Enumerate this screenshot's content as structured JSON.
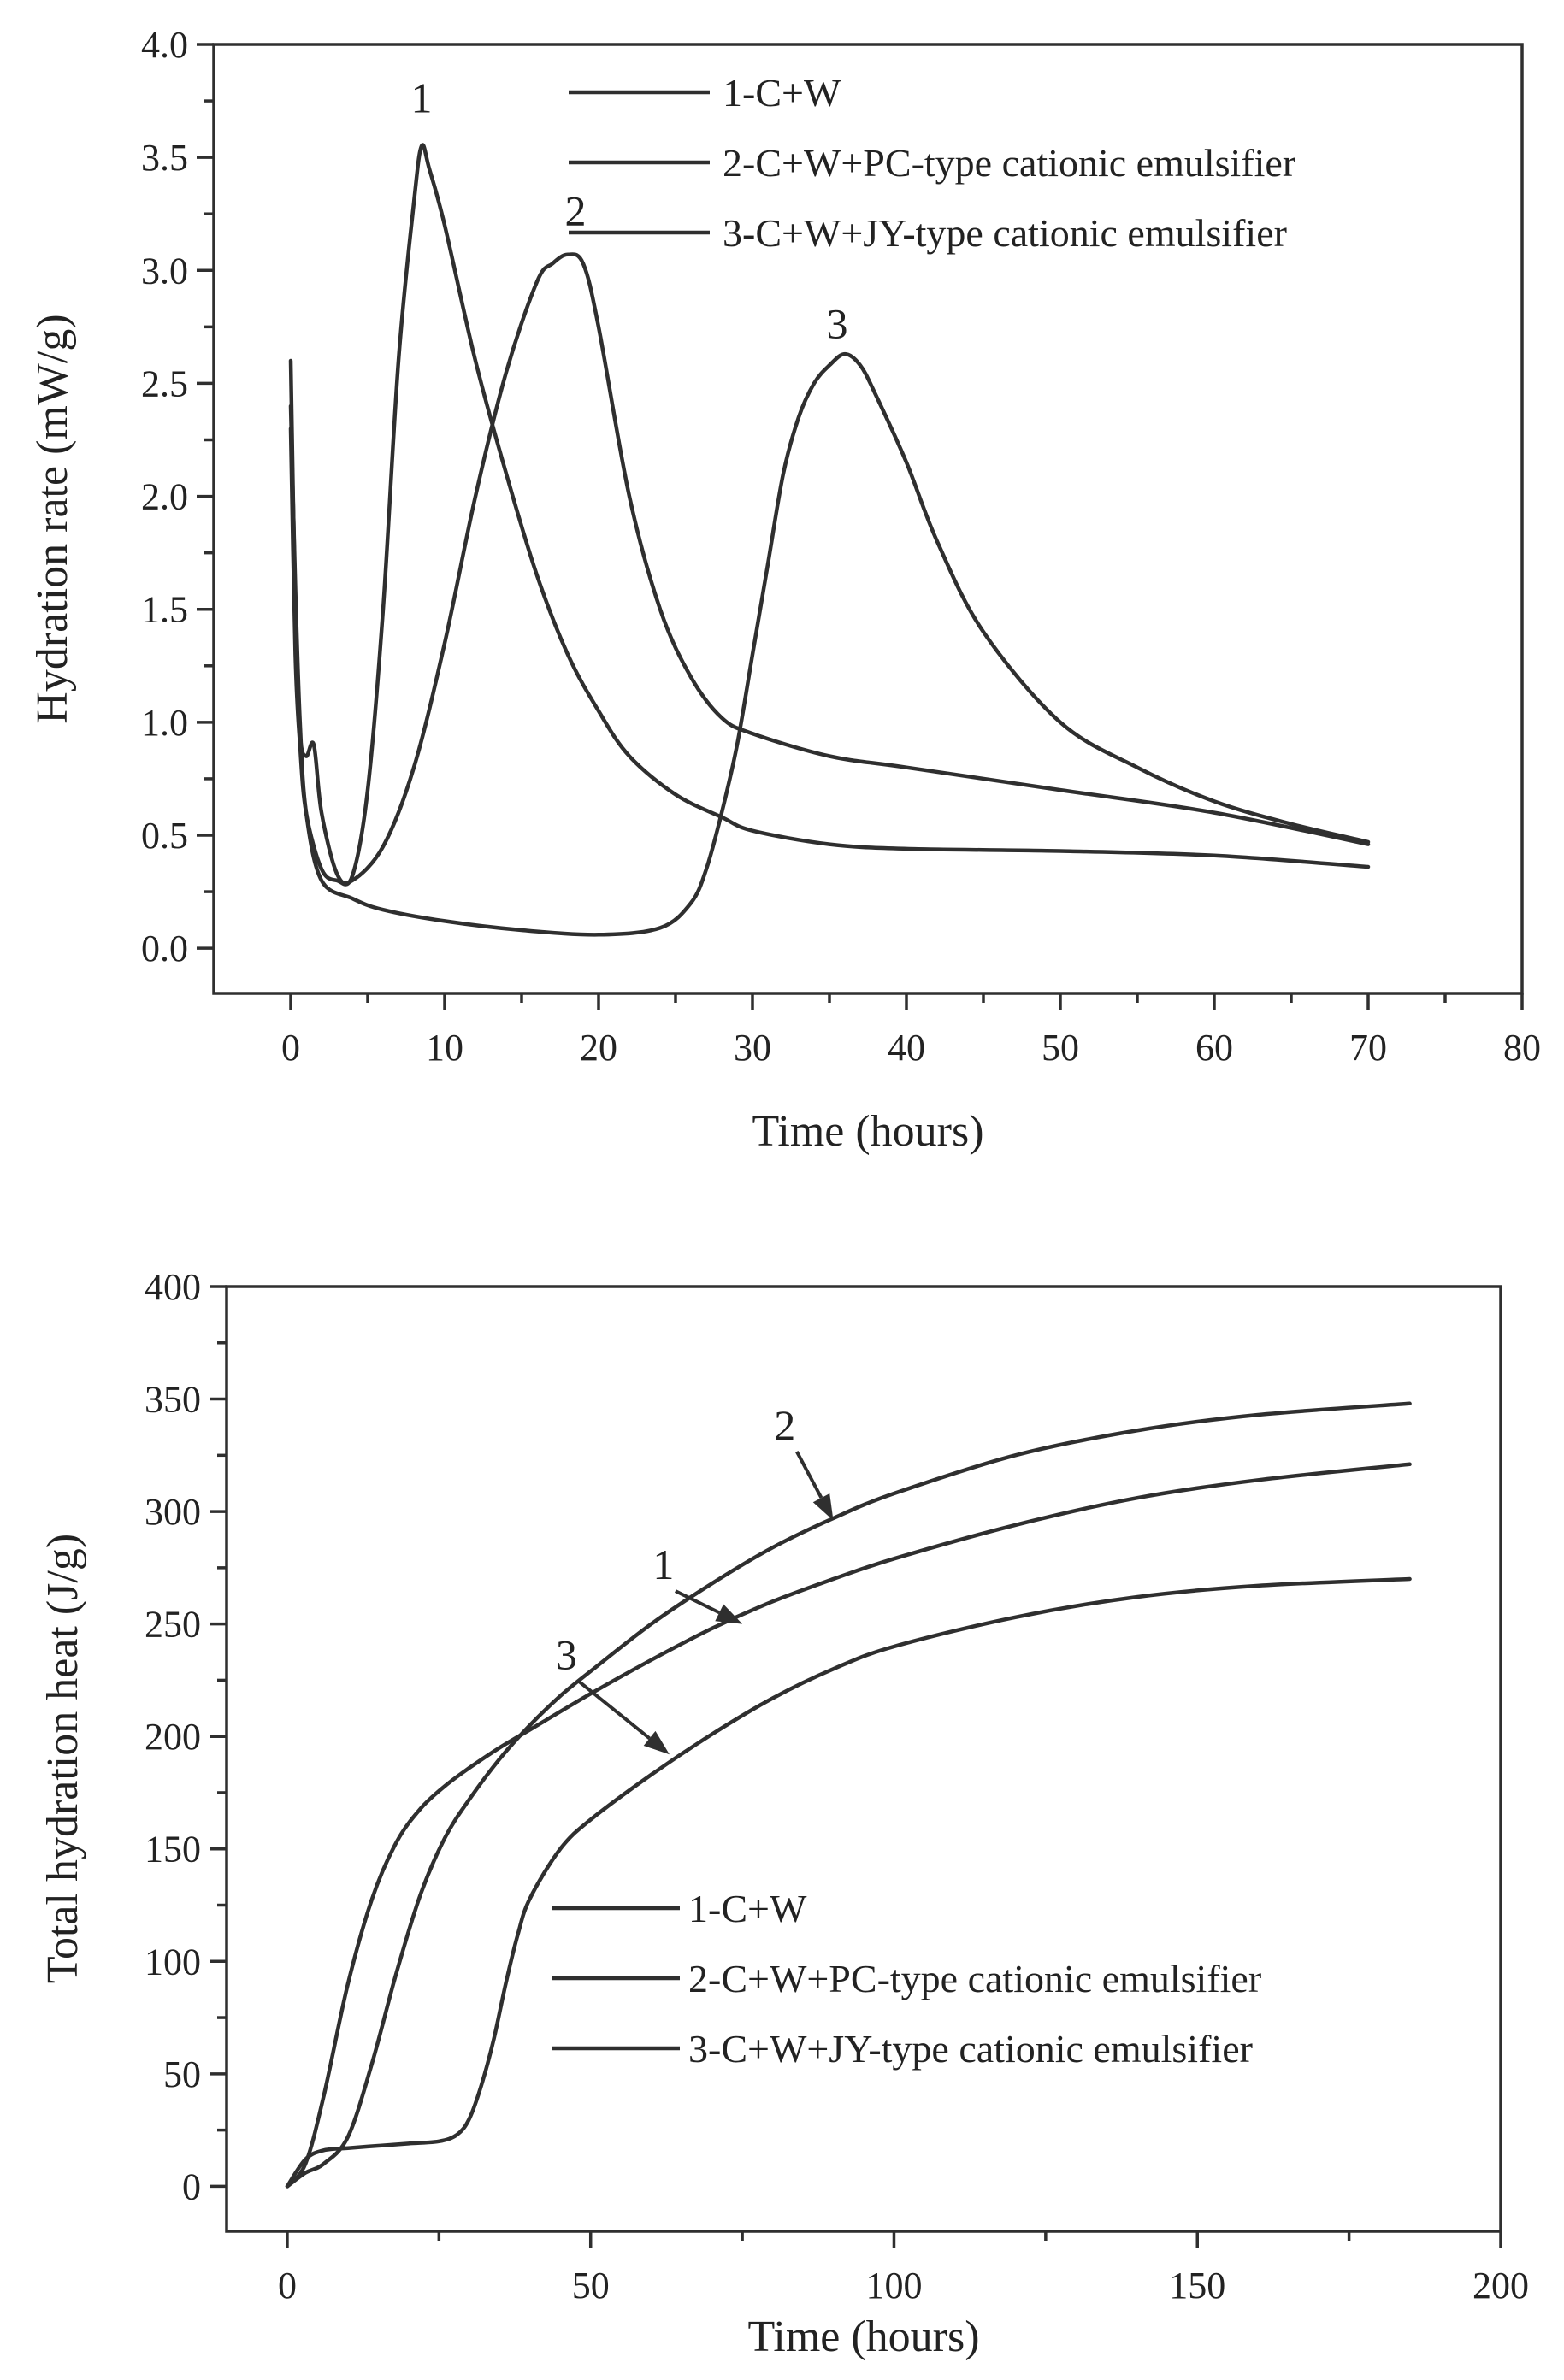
{
  "chart_data": [
    {
      "type": "line",
      "xlabel": "Time (hours)",
      "ylabel": "Hydration rate (mW/g)",
      "xlim": [
        -5,
        80
      ],
      "ylim": [
        -0.2,
        4.0
      ],
      "xticks": [
        0,
        10,
        20,
        30,
        40,
        50,
        60,
        70,
        80
      ],
      "xtick_labels": [
        "0",
        "10",
        "20",
        "30",
        "40",
        "50",
        "60",
        "70",
        "80"
      ],
      "yticks": [
        0.0,
        0.5,
        1.0,
        1.5,
        2.0,
        2.5,
        3.0,
        3.5,
        4.0
      ],
      "ytick_labels": [
        "0.0",
        "0.5",
        "1.0",
        "1.5",
        "2.0",
        "2.5",
        "3.0",
        "3.5",
        "4.0"
      ],
      "legend_position": "top-right",
      "series": [
        {
          "name": "1-C+W",
          "label": "1",
          "label_at": [
            8.5,
            3.7
          ],
          "x": [
            0,
            0.3,
            0.6,
            1,
            2,
            3,
            4,
            5,
            6,
            7,
            8,
            8.5,
            9,
            10,
            12,
            14,
            16,
            18,
            20,
            22,
            25,
            28,
            30,
            35,
            40,
            50,
            60,
            70
          ],
          "y": [
            2.3,
            1.3,
            0.9,
            0.6,
            0.35,
            0.3,
            0.32,
            0.7,
            1.5,
            2.6,
            3.3,
            3.55,
            3.45,
            3.2,
            2.6,
            2.1,
            1.65,
            1.3,
            1.05,
            0.85,
            0.68,
            0.58,
            0.52,
            0.46,
            0.44,
            0.43,
            0.41,
            0.36
          ]
        },
        {
          "name": "2-C+W+PC-type cationic emulsifier",
          "label": "2",
          "label_at": [
            18.5,
            3.2
          ],
          "x": [
            0,
            0.3,
            0.6,
            1,
            1.5,
            2,
            3,
            4,
            6,
            8,
            10,
            12,
            14,
            16,
            17,
            18,
            19,
            20,
            22,
            24,
            26,
            28,
            30,
            35,
            40,
            50,
            60,
            70
          ],
          "y": [
            2.6,
            1.5,
            0.95,
            0.85,
            0.9,
            0.6,
            0.33,
            0.3,
            0.45,
            0.8,
            1.35,
            2.0,
            2.55,
            2.95,
            3.03,
            3.07,
            3.03,
            2.75,
            2.0,
            1.5,
            1.2,
            1.02,
            0.95,
            0.85,
            0.8,
            0.7,
            0.6,
            0.46
          ]
        },
        {
          "name": "3-C+W+JY-type cationic emulsifier",
          "label": "3",
          "label_at": [
            35.5,
            2.7
          ],
          "x": [
            0,
            0.3,
            0.6,
            1,
            2,
            4,
            6,
            10,
            15,
            20,
            24,
            26,
            27,
            28,
            29,
            30,
            31,
            32,
            33,
            34,
            35,
            36,
            37,
            38,
            40,
            42,
            45,
            50,
            55,
            60,
            65,
            70
          ],
          "y": [
            2.4,
            1.6,
            1.0,
            0.6,
            0.3,
            0.22,
            0.17,
            0.12,
            0.08,
            0.06,
            0.09,
            0.2,
            0.35,
            0.6,
            0.9,
            1.3,
            1.7,
            2.1,
            2.35,
            2.5,
            2.58,
            2.63,
            2.58,
            2.45,
            2.15,
            1.8,
            1.4,
            1.0,
            0.8,
            0.65,
            0.55,
            0.47
          ]
        }
      ]
    },
    {
      "type": "line",
      "xlabel": "Time (hours)",
      "ylabel": "Total hydration heat (J/g)",
      "xlim": [
        -10,
        200
      ],
      "ylim": [
        -20,
        400
      ],
      "xticks": [
        0,
        50,
        100,
        150,
        200
      ],
      "xtick_labels": [
        "0",
        "50",
        "100",
        "150",
        "200"
      ],
      "yticks": [
        0,
        50,
        100,
        150,
        200,
        250,
        300,
        350,
        400
      ],
      "ytick_labels": [
        "0",
        "50",
        "100",
        "150",
        "200",
        "250",
        "300",
        "350",
        "400"
      ],
      "legend_position": "center-right",
      "series": [
        {
          "name": "1-C+W",
          "label": "1",
          "label_at": [
            62,
            270
          ],
          "arrow_to": [
            75,
            250
          ],
          "x": [
            0,
            3,
            6,
            10,
            14,
            18,
            22,
            26,
            30,
            35,
            40,
            50,
            60,
            70,
            80,
            90,
            100,
            120,
            140,
            160,
            185
          ],
          "y": [
            0,
            10,
            40,
            90,
            128,
            153,
            168,
            178,
            186,
            195,
            203,
            219,
            234,
            248,
            260,
            270,
            279,
            294,
            306,
            314,
            321
          ]
        },
        {
          "name": "2-C+W+PC-type cationic emulsifier",
          "label": "2",
          "label_at": [
            82,
            332
          ],
          "arrow_to": [
            90,
            296
          ],
          "x": [
            0,
            3,
            6,
            10,
            14,
            18,
            22,
            26,
            30,
            35,
            40,
            45,
            50,
            60,
            70,
            80,
            90,
            100,
            120,
            140,
            160,
            185
          ],
          "y": [
            0,
            6,
            10,
            22,
            55,
            95,
            130,
            155,
            172,
            190,
            205,
            218,
            229,
            250,
            268,
            284,
            297,
            308,
            325,
            336,
            343,
            348
          ]
        },
        {
          "name": "3-C+W+JY-type cationic emulsifier",
          "label": "3",
          "label_at": [
            46,
            230
          ],
          "arrow_to": [
            63,
            192
          ],
          "x": [
            0,
            3,
            6,
            10,
            15,
            20,
            25,
            28,
            30,
            32,
            34,
            36,
            38,
            40,
            45,
            50,
            60,
            70,
            80,
            90,
            100,
            120,
            140,
            160,
            185
          ],
          "y": [
            0,
            12,
            16,
            17,
            18,
            19,
            20,
            23,
            30,
            45,
            65,
            90,
            112,
            128,
            150,
            163,
            183,
            201,
            217,
            230,
            240,
            253,
            262,
            267,
            270
          ]
        }
      ]
    }
  ]
}
